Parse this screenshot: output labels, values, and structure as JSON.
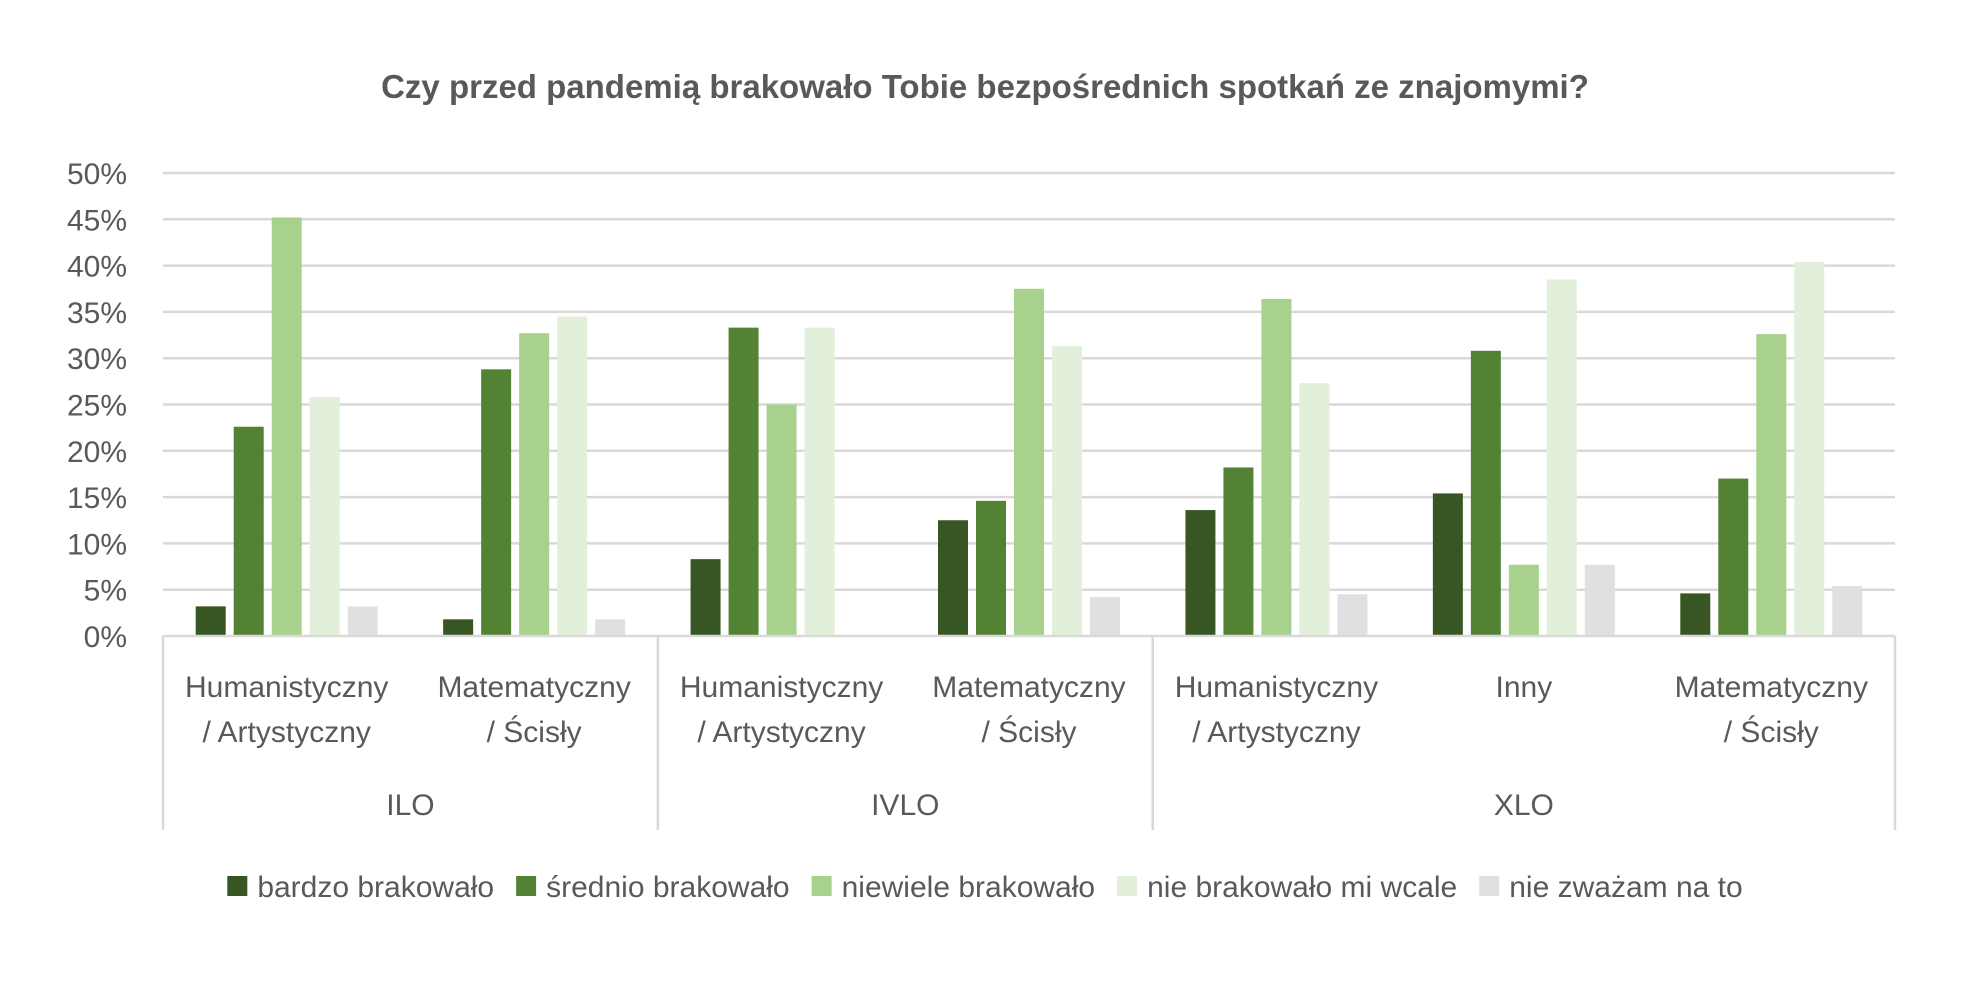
{
  "chart_data": {
    "type": "bar",
    "title": "Czy przed pandemią brakowało Tobie bezpośrednich spotkań ze znajomymi?",
    "xlabel": "",
    "ylabel": "",
    "ylim": [
      0,
      50
    ],
    "yticks": [
      "0%",
      "5%",
      "10%",
      "15%",
      "20%",
      "25%",
      "30%",
      "35%",
      "40%",
      "45%",
      "50%"
    ],
    "grid": true,
    "legend_position": "bottom",
    "groups": [
      {
        "label": "ILO",
        "span": 2
      },
      {
        "label": "IVLO",
        "span": 2
      },
      {
        "label": "XLO",
        "span": 3
      }
    ],
    "categories": [
      [
        "Humanistyczny",
        "/ Artystyczny"
      ],
      [
        "Matematyczny",
        "/ Ścisły"
      ],
      [
        "Humanistyczny",
        "/ Artystyczny"
      ],
      [
        "Matematyczny",
        "/ Ścisły"
      ],
      [
        "Humanistyczny",
        "/ Artystyczny"
      ],
      [
        "Inny"
      ],
      [
        "Matematyczny",
        "/ Ścisły"
      ]
    ],
    "series": [
      {
        "name": "bardzo brakowało",
        "color": "#375623",
        "values": [
          3.2,
          1.8,
          8.3,
          12.5,
          13.6,
          15.4,
          4.6
        ]
      },
      {
        "name": "średnio brakowało",
        "color": "#548235",
        "values": [
          22.6,
          28.8,
          33.3,
          14.6,
          18.2,
          30.8,
          17.0
        ]
      },
      {
        "name": "niewiele brakowało",
        "color": "#a9d18e",
        "values": [
          45.2,
          32.7,
          25.0,
          37.5,
          36.4,
          7.7,
          32.6
        ]
      },
      {
        "name": "nie brakowało mi wcale",
        "color": "#e2efda",
        "values": [
          25.8,
          34.5,
          33.3,
          31.3,
          27.3,
          38.5,
          40.4
        ]
      },
      {
        "name": "nie zważam na to",
        "color": "#e0e0e0",
        "values": [
          3.2,
          1.8,
          0,
          4.2,
          4.5,
          7.7,
          5.4
        ]
      }
    ]
  }
}
